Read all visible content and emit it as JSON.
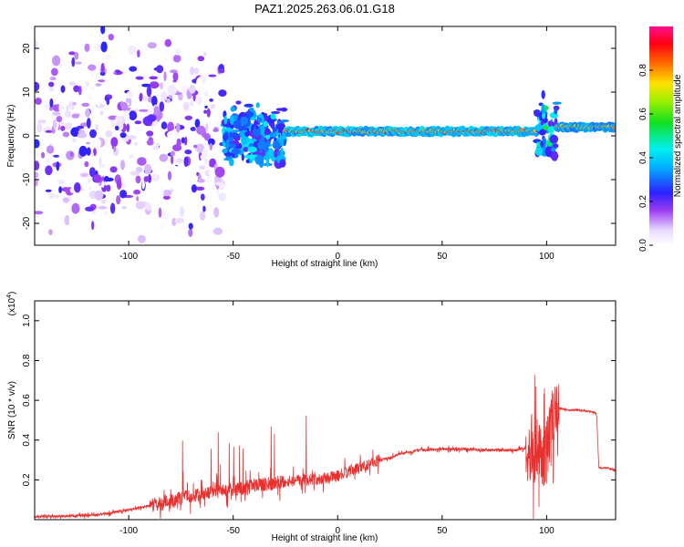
{
  "title": "PAZ1.2025.263.06.01.G18",
  "chart_data": [
    {
      "type": "heatmap",
      "xlabel": "Height of straight line (km)",
      "ylabel": "Frequency (Hz)",
      "xlim": [
        -145,
        133
      ],
      "ylim": [
        -25,
        25
      ],
      "xticks": [
        -100,
        -50,
        0,
        50,
        100
      ],
      "yticks": [
        -20,
        -10,
        0,
        10,
        20
      ],
      "colorbar": {
        "label": "Normalized spectral amplitude",
        "range": [
          0,
          1
        ],
        "ticks": [
          0.0,
          0.2,
          0.4,
          0.6,
          0.8
        ],
        "tick_labels": [
          "0.0",
          "0.2",
          "0.4",
          "0.6",
          "0.8"
        ],
        "colormap": "rainbow (white-violet-blue-cyan-green-yellow-red-magenta)"
      },
      "features": [
        {
          "x_range": [
            -145,
            -55
          ],
          "freq_spread_hz": [
            -25,
            25
          ],
          "amplitude": [
            0.0,
            0.25
          ],
          "description_kind": "scattered blobs"
        },
        {
          "x_range": [
            -55,
            -25
          ],
          "freq_spread_hz": [
            -8,
            8
          ],
          "amplitude": [
            0.2,
            0.45
          ]
        },
        {
          "x_range": [
            -25,
            95
          ],
          "center_freq_hz": 1.0,
          "amplitude": [
            0.5,
            0.95
          ]
        },
        {
          "x_range": [
            95,
            105
          ],
          "freq_spread_hz": [
            -7,
            10
          ],
          "amplitude": [
            0.2,
            0.55
          ]
        },
        {
          "x_range": [
            105,
            133
          ],
          "center_freq_hz": 2.0,
          "amplitude": [
            0.5,
            0.85
          ]
        }
      ]
    },
    {
      "type": "line",
      "xlabel": "Height of straight line (km)",
      "ylabel": "SNR (10 * v/v)",
      "y_multiplier": "(x10",
      "y_multiplier_exp": "4",
      "y_multiplier_close": ")",
      "xlim": [
        -145,
        133
      ],
      "ylim": [
        0,
        1.1
      ],
      "xticks": [
        -100,
        -50,
        0,
        50,
        100
      ],
      "yticks": [
        0.2,
        0.4,
        0.6,
        0.8,
        1.0
      ],
      "ytick_labels": [
        "0.2",
        "0.4",
        "0.6",
        "0.8",
        "1.0"
      ],
      "series": [
        {
          "color": "#e8302e",
          "x": [
            -145,
            -130,
            -120,
            -110,
            -100,
            -90,
            -80,
            -75,
            -70,
            -60,
            -50,
            -40,
            -33,
            -25,
            -15,
            -5,
            0,
            5,
            10,
            15,
            20,
            25,
            30,
            40,
            50,
            60,
            70,
            80,
            85,
            90,
            95,
            98,
            100,
            102,
            104,
            105,
            106,
            108,
            110,
            115,
            120,
            123,
            124,
            125,
            130,
            133
          ],
          "y": [
            0.015,
            0.018,
            0.02,
            0.03,
            0.05,
            0.07,
            0.09,
            0.11,
            0.12,
            0.14,
            0.15,
            0.17,
            0.18,
            0.19,
            0.2,
            0.21,
            0.22,
            0.24,
            0.26,
            0.28,
            0.3,
            0.31,
            0.33,
            0.35,
            0.355,
            0.355,
            0.35,
            0.35,
            0.35,
            0.36,
            0.35,
            0.3,
            0.35,
            0.45,
            0.6,
            0.55,
            0.56,
            0.555,
            0.55,
            0.55,
            0.545,
            0.54,
            0.52,
            0.26,
            0.26,
            0.25
          ]
        }
      ]
    }
  ]
}
